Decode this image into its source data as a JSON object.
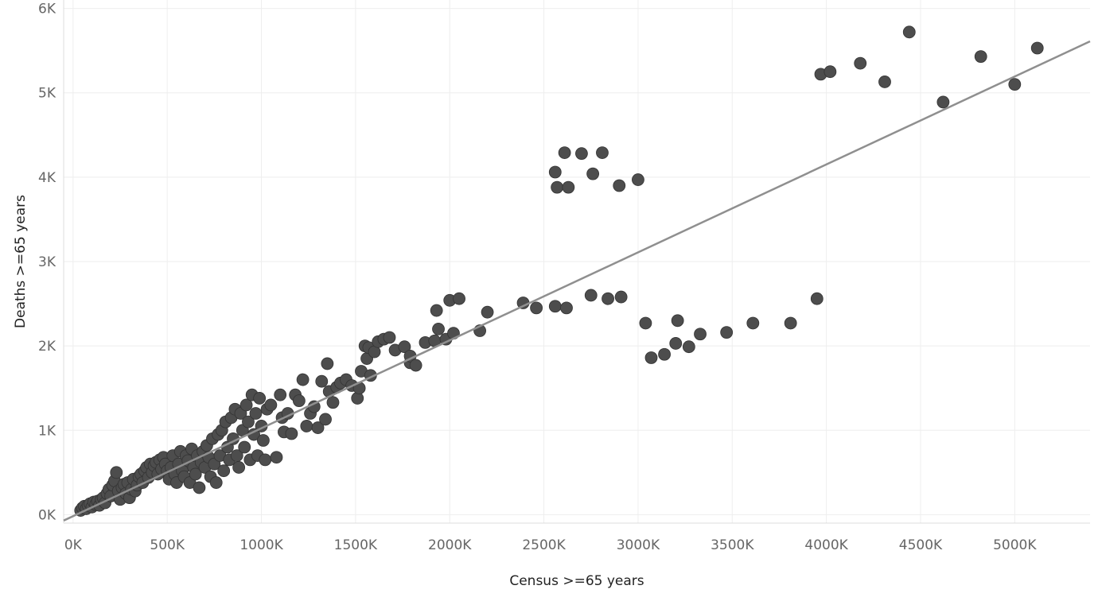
{
  "chart_data": {
    "type": "scatter",
    "title": "",
    "xlabel": "Census >=65 years",
    "ylabel": "Deaths >=65 years",
    "xlim": [
      -50000,
      5400000
    ],
    "ylim": [
      -100,
      6100
    ],
    "x_ticks": [
      {
        "value": 0,
        "label": "0K"
      },
      {
        "value": 500000,
        "label": "500K"
      },
      {
        "value": 1000000,
        "label": "1000K"
      },
      {
        "value": 1500000,
        "label": "1500K"
      },
      {
        "value": 2000000,
        "label": "2000K"
      },
      {
        "value": 2500000,
        "label": "2500K"
      },
      {
        "value": 3000000,
        "label": "3000K"
      },
      {
        "value": 3500000,
        "label": "3500K"
      },
      {
        "value": 4000000,
        "label": "4000K"
      },
      {
        "value": 4500000,
        "label": "4500K"
      },
      {
        "value": 5000000,
        "label": "5000K"
      }
    ],
    "y_ticks": [
      {
        "value": 0,
        "label": "0K"
      },
      {
        "value": 1000,
        "label": "1K"
      },
      {
        "value": 2000,
        "label": "2K"
      },
      {
        "value": 3000,
        "label": "3K"
      },
      {
        "value": 4000,
        "label": "4K"
      },
      {
        "value": 5000,
        "label": "5K"
      },
      {
        "value": 6000,
        "label": "6K"
      }
    ],
    "grid": true,
    "legend": "none",
    "marker_color": "#4d4d4d",
    "trend_color": "#8f8f8f",
    "trend_line": {
      "x": [
        -50000,
        5400000
      ],
      "y": [
        -70,
        5610
      ]
    },
    "points": [
      [
        40000,
        50
      ],
      [
        50000,
        80
      ],
      [
        60000,
        100
      ],
      [
        70000,
        70
      ],
      [
        80000,
        110
      ],
      [
        90000,
        130
      ],
      [
        100000,
        90
      ],
      [
        110000,
        150
      ],
      [
        120000,
        120
      ],
      [
        130000,
        160
      ],
      [
        140000,
        110
      ],
      [
        150000,
        180
      ],
      [
        160000,
        200
      ],
      [
        170000,
        140
      ],
      [
        180000,
        250
      ],
      [
        190000,
        300
      ],
      [
        200000,
        220
      ],
      [
        210000,
        350
      ],
      [
        220000,
        400
      ],
      [
        230000,
        500
      ],
      [
        240000,
        280
      ],
      [
        250000,
        180
      ],
      [
        260000,
        320
      ],
      [
        270000,
        360
      ],
      [
        280000,
        250
      ],
      [
        290000,
        380
      ],
      [
        300000,
        200
      ],
      [
        310000,
        300
      ],
      [
        320000,
        420
      ],
      [
        330000,
        280
      ],
      [
        340000,
        350
      ],
      [
        350000,
        450
      ],
      [
        360000,
        480
      ],
      [
        370000,
        380
      ],
      [
        380000,
        520
      ],
      [
        390000,
        560
      ],
      [
        400000,
        440
      ],
      [
        410000,
        600
      ],
      [
        420000,
        500
      ],
      [
        430000,
        580
      ],
      [
        440000,
        620
      ],
      [
        450000,
        480
      ],
      [
        460000,
        650
      ],
      [
        470000,
        540
      ],
      [
        480000,
        680
      ],
      [
        490000,
        600
      ],
      [
        500000,
        520
      ],
      [
        510000,
        420
      ],
      [
        520000,
        560
      ],
      [
        530000,
        700
      ],
      [
        540000,
        480
      ],
      [
        550000,
        380
      ],
      [
        560000,
        600
      ],
      [
        570000,
        750
      ],
      [
        580000,
        520
      ],
      [
        590000,
        450
      ],
      [
        600000,
        700
      ],
      [
        610000,
        640
      ],
      [
        620000,
        380
      ],
      [
        630000,
        780
      ],
      [
        640000,
        560
      ],
      [
        650000,
        480
      ],
      [
        660000,
        700
      ],
      [
        670000,
        320
      ],
      [
        680000,
        620
      ],
      [
        690000,
        750
      ],
      [
        700000,
        560
      ],
      [
        710000,
        820
      ],
      [
        720000,
        680
      ],
      [
        730000,
        450
      ],
      [
        740000,
        900
      ],
      [
        750000,
        600
      ],
      [
        760000,
        380
      ],
      [
        770000,
        950
      ],
      [
        780000,
        700
      ],
      [
        790000,
        1000
      ],
      [
        800000,
        520
      ],
      [
        810000,
        1100
      ],
      [
        820000,
        800
      ],
      [
        830000,
        650
      ],
      [
        840000,
        1150
      ],
      [
        850000,
        900
      ],
      [
        860000,
        1250
      ],
      [
        870000,
        700
      ],
      [
        880000,
        560
      ],
      [
        890000,
        1200
      ],
      [
        900000,
        1000
      ],
      [
        910000,
        800
      ],
      [
        920000,
        1300
      ],
      [
        930000,
        1100
      ],
      [
        940000,
        650
      ],
      [
        950000,
        1420
      ],
      [
        960000,
        950
      ],
      [
        970000,
        1200
      ],
      [
        980000,
        700
      ],
      [
        990000,
        1380
      ],
      [
        1000000,
        1050
      ],
      [
        1010000,
        880
      ],
      [
        1020000,
        650
      ],
      [
        1030000,
        1250
      ],
      [
        1050000,
        1300
      ],
      [
        1080000,
        680
      ],
      [
        1100000,
        1420
      ],
      [
        1110000,
        1150
      ],
      [
        1120000,
        980
      ],
      [
        1140000,
        1200
      ],
      [
        1160000,
        960
      ],
      [
        1180000,
        1420
      ],
      [
        1200000,
        1350
      ],
      [
        1220000,
        1600
      ],
      [
        1240000,
        1050
      ],
      [
        1260000,
        1200
      ],
      [
        1280000,
        1280
      ],
      [
        1300000,
        1030
      ],
      [
        1320000,
        1580
      ],
      [
        1340000,
        1130
      ],
      [
        1350000,
        1790
      ],
      [
        1360000,
        1460
      ],
      [
        1380000,
        1330
      ],
      [
        1400000,
        1510
      ],
      [
        1420000,
        1560
      ],
      [
        1450000,
        1600
      ],
      [
        1480000,
        1530
      ],
      [
        1510000,
        1380
      ],
      [
        1520000,
        1500
      ],
      [
        1530000,
        1700
      ],
      [
        1550000,
        2000
      ],
      [
        1560000,
        1850
      ],
      [
        1570000,
        1980
      ],
      [
        1580000,
        1650
      ],
      [
        1600000,
        1930
      ],
      [
        1620000,
        2050
      ],
      [
        1650000,
        2080
      ],
      [
        1680000,
        2100
      ],
      [
        1710000,
        1950
      ],
      [
        1760000,
        1990
      ],
      [
        1790000,
        1800
      ],
      [
        1790000,
        1880
      ],
      [
        1820000,
        1770
      ],
      [
        1870000,
        2040
      ],
      [
        1920000,
        2060
      ],
      [
        1930000,
        2420
      ],
      [
        1940000,
        2200
      ],
      [
        1980000,
        2080
      ],
      [
        2000000,
        2540
      ],
      [
        2020000,
        2150
      ],
      [
        2050000,
        2560
      ],
      [
        2160000,
        2180
      ],
      [
        2200000,
        2400
      ],
      [
        2390000,
        2510
      ],
      [
        2460000,
        2450
      ],
      [
        2560000,
        2470
      ],
      [
        2560000,
        4060
      ],
      [
        2570000,
        3880
      ],
      [
        2610000,
        4290
      ],
      [
        2620000,
        2450
      ],
      [
        2630000,
        3880
      ],
      [
        2700000,
        4280
      ],
      [
        2750000,
        2600
      ],
      [
        2760000,
        4040
      ],
      [
        2810000,
        4290
      ],
      [
        2840000,
        2560
      ],
      [
        2900000,
        3900
      ],
      [
        2910000,
        2580
      ],
      [
        3000000,
        3970
      ],
      [
        3040000,
        2270
      ],
      [
        3070000,
        1860
      ],
      [
        3140000,
        1900
      ],
      [
        3200000,
        2030
      ],
      [
        3210000,
        2300
      ],
      [
        3270000,
        1990
      ],
      [
        3330000,
        2140
      ],
      [
        3470000,
        2160
      ],
      [
        3610000,
        2270
      ],
      [
        3810000,
        2270
      ],
      [
        3950000,
        2560
      ],
      [
        3970000,
        5220
      ],
      [
        4020000,
        5250
      ],
      [
        4180000,
        5350
      ],
      [
        4310000,
        5130
      ],
      [
        4440000,
        5720
      ],
      [
        4620000,
        4890
      ],
      [
        4820000,
        5430
      ],
      [
        5000000,
        5100
      ],
      [
        5120000,
        5530
      ]
    ]
  }
}
